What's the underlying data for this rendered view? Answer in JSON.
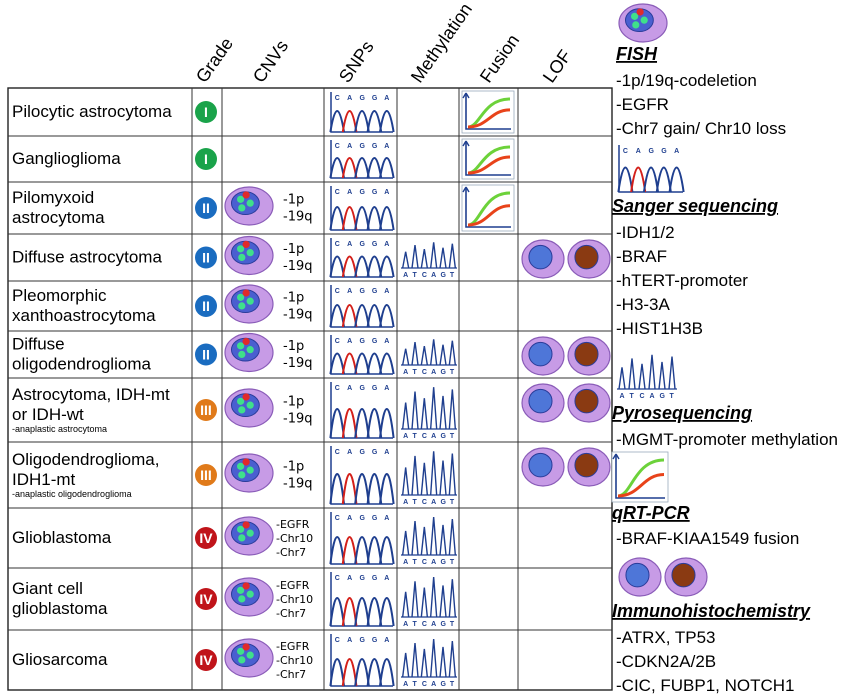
{
  "headers": {
    "grade": "Grade",
    "cnvs": "CNVs",
    "snps": "SNPs",
    "methylation": "Methylation",
    "fusion": "Fusion",
    "lof": "LOF"
  },
  "grade_colors": {
    "I": "#1aa34a",
    "II": "#1a6cc0",
    "III": "#e07a1a",
    "IV": "#c0141a"
  },
  "rows": [
    {
      "name": [
        "Pilocytic astrocytoma"
      ],
      "sub": "",
      "grade": "I",
      "cnv": [],
      "snp": true,
      "methylation": false,
      "fusion": true,
      "lof": false
    },
    {
      "name": [
        "Ganglioglioma"
      ],
      "sub": "",
      "grade": "I",
      "cnv": [],
      "snp": true,
      "methylation": false,
      "fusion": true,
      "lof": false
    },
    {
      "name": [
        "Pilomyxoid",
        "astrocytoma"
      ],
      "sub": "",
      "grade": "II",
      "cnv": [
        "-1p",
        "-19q"
      ],
      "snp": true,
      "methylation": false,
      "fusion": true,
      "lof": false
    },
    {
      "name": [
        "Diffuse astrocytoma"
      ],
      "sub": "",
      "grade": "II",
      "cnv": [
        "-1p",
        "-19q"
      ],
      "snp": true,
      "methylation": true,
      "fusion": false,
      "lof": true
    },
    {
      "name": [
        "Pleomorphic",
        "xanthoastrocytoma"
      ],
      "sub": "",
      "grade": "II",
      "cnv": [
        "-1p",
        "-19q"
      ],
      "snp": true,
      "methylation": false,
      "fusion": false,
      "lof": false
    },
    {
      "name": [
        "Diffuse",
        "oligodendroglioma"
      ],
      "sub": "",
      "grade": "II",
      "cnv": [
        "-1p",
        "-19q"
      ],
      "snp": true,
      "methylation": true,
      "fusion": false,
      "lof": true
    },
    {
      "name": [
        "Astrocytoma, IDH-mt",
        "or IDH-wt"
      ],
      "sub": "-anaplastic astrocytoma",
      "grade": "III",
      "cnv": [
        "-1p",
        "-19q"
      ],
      "snp": true,
      "methylation": true,
      "fusion": false,
      "lof": true
    },
    {
      "name": [
        "Oligodendroglioma,",
        "IDH1-mt"
      ],
      "sub": "-anaplastic oligodendroglioma",
      "grade": "III",
      "cnv": [
        "-1p",
        "-19q"
      ],
      "snp": true,
      "methylation": true,
      "fusion": false,
      "lof": true
    },
    {
      "name": [
        "Glioblastoma"
      ],
      "sub": "",
      "grade": "IV",
      "cnv": [
        "-EGFR",
        "-Chr10",
        "-Chr7"
      ],
      "snp": true,
      "methylation": true,
      "fusion": false,
      "lof": false
    },
    {
      "name": [
        "Giant cell",
        "glioblastoma"
      ],
      "sub": "",
      "grade": "IV",
      "cnv": [
        "-EGFR",
        "-Chr10",
        "-Chr7"
      ],
      "snp": true,
      "methylation": true,
      "fusion": false,
      "lof": false
    },
    {
      "name": [
        "Gliosarcoma"
      ],
      "sub": "",
      "grade": "IV",
      "cnv": [
        "-EGFR",
        "-Chr10",
        "-Chr7"
      ],
      "snp": true,
      "methylation": true,
      "fusion": false,
      "lof": false
    }
  ],
  "snp_letters": "CAGGA",
  "methylation_letters": "ATCAGT",
  "legend": {
    "fish": {
      "title": "FISH",
      "items": [
        "-1p/19q-codeletion",
        "-EGFR",
        "-Chr7 gain/ Chr10 loss"
      ]
    },
    "sanger": {
      "title": "Sanger sequencing",
      "items": [
        "-IDH1/2",
        "-BRAF",
        "-hTERT-promoter",
        "-H3-3A",
        "-HIST1H3B"
      ]
    },
    "pyro": {
      "title": "Pyrosequencing",
      "items": [
        "-MGMT-promoter methylation"
      ]
    },
    "qrt": {
      "title": "qRT-PCR",
      "items": [
        "-BRAF-KIAA1549 fusion"
      ]
    },
    "ihc": {
      "title": "Immunohistochemistry",
      "items": [
        "-ATRX, TP53",
        "-CDKN2A/2B",
        "-CIC, FUBP1, NOTCH1"
      ]
    }
  }
}
